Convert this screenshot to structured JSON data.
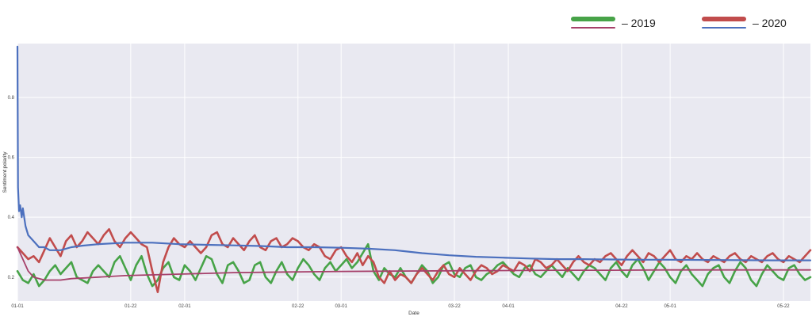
{
  "legend": {
    "items": [
      {
        "label": "– 2019",
        "colors": [
          "#47a348",
          "#a6406a"
        ]
      },
      {
        "label": "– 2020",
        "colors": [
          "#c14c4c",
          "#4c70be"
        ]
      }
    ]
  },
  "chart_data": {
    "type": "line",
    "title": "",
    "xlabel": "Date",
    "ylabel": "Sentiment polarity",
    "x_range_days": [
      0,
      147
    ],
    "ylim": [
      0.12,
      0.98
    ],
    "grid": true,
    "background": "#e9e9f1",
    "x_ticks": [
      {
        "day": 0,
        "label": "01-01"
      },
      {
        "day": 21,
        "label": "01-22"
      },
      {
        "day": 31,
        "label": "02-01"
      },
      {
        "day": 52,
        "label": "02-22"
      },
      {
        "day": 60,
        "label": "03-01"
      },
      {
        "day": 81,
        "label": "03-22"
      },
      {
        "day": 91,
        "label": "04-01"
      },
      {
        "day": 112,
        "label": "04-22"
      },
      {
        "day": 121,
        "label": "05-01"
      },
      {
        "day": 142,
        "label": "05-22"
      }
    ],
    "y_ticks": [
      0.2,
      0.4,
      0.6,
      0.8
    ],
    "series": [
      {
        "name": "2019",
        "color": "#47a348",
        "width": 2.6,
        "x": [
          0,
          1,
          2,
          3,
          4,
          5,
          6,
          7,
          8,
          9,
          10,
          11,
          12,
          13,
          14,
          15,
          16,
          17,
          18,
          19,
          20,
          21,
          22,
          23,
          24,
          25,
          26,
          27,
          28,
          29,
          30,
          31,
          32,
          33,
          34,
          35,
          36,
          37,
          38,
          39,
          40,
          41,
          42,
          43,
          44,
          45,
          46,
          47,
          48,
          49,
          50,
          51,
          52,
          53,
          54,
          55,
          56,
          57,
          58,
          59,
          60,
          61,
          62,
          63,
          64,
          65,
          66,
          67,
          68,
          69,
          70,
          71,
          72,
          73,
          74,
          75,
          76,
          77,
          78,
          79,
          80,
          81,
          82,
          83,
          84,
          85,
          86,
          87,
          88,
          89,
          90,
          91,
          92,
          93,
          94,
          95,
          96,
          97,
          98,
          99,
          100,
          101,
          102,
          103,
          104,
          105,
          106,
          107,
          108,
          109,
          110,
          111,
          112,
          113,
          114,
          115,
          116,
          117,
          118,
          119,
          120,
          121,
          122,
          123,
          124,
          125,
          126,
          127,
          128,
          129,
          130,
          131,
          132,
          133,
          134,
          135,
          136,
          137,
          138,
          139,
          140,
          141,
          142,
          143,
          144,
          145,
          146,
          147
        ],
        "y": [
          0.22,
          0.19,
          0.18,
          0.21,
          0.17,
          0.19,
          0.22,
          0.24,
          0.21,
          0.23,
          0.25,
          0.2,
          0.19,
          0.18,
          0.22,
          0.24,
          0.22,
          0.2,
          0.25,
          0.27,
          0.23,
          0.19,
          0.24,
          0.27,
          0.21,
          0.17,
          0.19,
          0.23,
          0.25,
          0.2,
          0.19,
          0.24,
          0.22,
          0.19,
          0.23,
          0.27,
          0.26,
          0.21,
          0.18,
          0.24,
          0.25,
          0.22,
          0.18,
          0.19,
          0.24,
          0.25,
          0.2,
          0.18,
          0.22,
          0.25,
          0.21,
          0.19,
          0.23,
          0.26,
          0.24,
          0.21,
          0.19,
          0.23,
          0.25,
          0.22,
          0.24,
          0.26,
          0.23,
          0.25,
          0.28,
          0.31,
          0.22,
          0.19,
          0.23,
          0.21,
          0.2,
          0.23,
          0.2,
          0.18,
          0.21,
          0.24,
          0.22,
          0.18,
          0.2,
          0.24,
          0.25,
          0.21,
          0.2,
          0.23,
          0.24,
          0.2,
          0.19,
          0.21,
          0.22,
          0.24,
          0.25,
          0.23,
          0.21,
          0.2,
          0.23,
          0.24,
          0.21,
          0.2,
          0.22,
          0.24,
          0.22,
          0.2,
          0.23,
          0.21,
          0.19,
          0.22,
          0.24,
          0.23,
          0.21,
          0.19,
          0.23,
          0.25,
          0.22,
          0.2,
          0.24,
          0.26,
          0.23,
          0.19,
          0.22,
          0.25,
          0.23,
          0.2,
          0.18,
          0.22,
          0.24,
          0.21,
          0.19,
          0.17,
          0.21,
          0.23,
          0.24,
          0.2,
          0.18,
          0.22,
          0.25,
          0.23,
          0.19,
          0.17,
          0.21,
          0.24,
          0.22,
          0.2,
          0.19,
          0.23,
          0.24,
          0.21,
          0.19,
          0.2
        ]
      },
      {
        "name": "2020",
        "color": "#c14c4c",
        "width": 2.6,
        "x": [
          0,
          1,
          2,
          3,
          4,
          5,
          6,
          7,
          8,
          9,
          10,
          11,
          12,
          13,
          14,
          15,
          16,
          17,
          18,
          19,
          20,
          21,
          22,
          23,
          24,
          25,
          26,
          27,
          28,
          29,
          30,
          31,
          32,
          33,
          34,
          35,
          36,
          37,
          38,
          39,
          40,
          41,
          42,
          43,
          44,
          45,
          46,
          47,
          48,
          49,
          50,
          51,
          52,
          53,
          54,
          55,
          56,
          57,
          58,
          59,
          60,
          61,
          62,
          63,
          64,
          65,
          66,
          67,
          68,
          69,
          70,
          71,
          72,
          73,
          74,
          75,
          76,
          77,
          78,
          79,
          80,
          81,
          82,
          83,
          84,
          85,
          86,
          87,
          88,
          89,
          90,
          91,
          92,
          93,
          94,
          95,
          96,
          97,
          98,
          99,
          100,
          101,
          102,
          103,
          104,
          105,
          106,
          107,
          108,
          109,
          110,
          111,
          112,
          113,
          114,
          115,
          116,
          117,
          118,
          119,
          120,
          121,
          122,
          123,
          124,
          125,
          126,
          127,
          128,
          129,
          130,
          131,
          132,
          133,
          134,
          135,
          136,
          137,
          138,
          139,
          140,
          141,
          142,
          143,
          144,
          145,
          146,
          147
        ],
        "y": [
          0.3,
          0.28,
          0.26,
          0.27,
          0.25,
          0.29,
          0.33,
          0.3,
          0.27,
          0.32,
          0.34,
          0.3,
          0.32,
          0.35,
          0.33,
          0.31,
          0.34,
          0.36,
          0.32,
          0.3,
          0.33,
          0.35,
          0.33,
          0.31,
          0.3,
          0.22,
          0.15,
          0.25,
          0.3,
          0.33,
          0.31,
          0.3,
          0.32,
          0.3,
          0.28,
          0.3,
          0.34,
          0.35,
          0.31,
          0.3,
          0.33,
          0.31,
          0.29,
          0.32,
          0.34,
          0.3,
          0.29,
          0.32,
          0.33,
          0.3,
          0.31,
          0.33,
          0.32,
          0.3,
          0.29,
          0.31,
          0.3,
          0.27,
          0.26,
          0.29,
          0.3,
          0.27,
          0.25,
          0.28,
          0.24,
          0.27,
          0.25,
          0.2,
          0.18,
          0.22,
          0.19,
          0.21,
          0.2,
          0.18,
          0.21,
          0.23,
          0.21,
          0.19,
          0.22,
          0.24,
          0.21,
          0.2,
          0.23,
          0.21,
          0.19,
          0.22,
          0.24,
          0.23,
          0.21,
          0.22,
          0.24,
          0.23,
          0.22,
          0.25,
          0.24,
          0.22,
          0.26,
          0.25,
          0.23,
          0.24,
          0.26,
          0.24,
          0.22,
          0.25,
          0.27,
          0.25,
          0.24,
          0.26,
          0.25,
          0.27,
          0.28,
          0.26,
          0.24,
          0.27,
          0.29,
          0.27,
          0.25,
          0.28,
          0.27,
          0.25,
          0.27,
          0.29,
          0.26,
          0.25,
          0.27,
          0.26,
          0.28,
          0.26,
          0.25,
          0.27,
          0.26,
          0.25,
          0.27,
          0.28,
          0.26,
          0.25,
          0.27,
          0.26,
          0.25,
          0.27,
          0.28,
          0.26,
          0.25,
          0.27,
          0.26,
          0.25,
          0.27,
          0.29
        ]
      },
      {
        "name": "2019",
        "color": "#a6406a",
        "width": 1.8,
        "x": [
          0,
          1,
          2,
          3,
          5,
          8,
          10,
          15,
          20,
          30,
          40,
          50,
          60,
          70,
          80,
          90,
          100,
          110,
          120,
          130,
          147
        ],
        "y": [
          0.3,
          0.26,
          0.22,
          0.2,
          0.19,
          0.19,
          0.195,
          0.2,
          0.205,
          0.21,
          0.215,
          0.217,
          0.219,
          0.22,
          0.221,
          0.222,
          0.223,
          0.223,
          0.224,
          0.224,
          0.224
        ]
      },
      {
        "name": "2020",
        "color": "#4c70be",
        "width": 2.2,
        "x": [
          0,
          0.1,
          0.3,
          0.5,
          0.8,
          1,
          1.5,
          2,
          3,
          4,
          5,
          6,
          8,
          10,
          12,
          15,
          20,
          25,
          30,
          35,
          40,
          45,
          50,
          55,
          60,
          65,
          70,
          75,
          80,
          85,
          90,
          95,
          100,
          105,
          110,
          115,
          120,
          130,
          140,
          147
        ],
        "y": [
          0.97,
          0.5,
          0.42,
          0.44,
          0.4,
          0.43,
          0.37,
          0.34,
          0.32,
          0.3,
          0.3,
          0.29,
          0.29,
          0.3,
          0.305,
          0.31,
          0.315,
          0.315,
          0.31,
          0.308,
          0.306,
          0.304,
          0.3,
          0.3,
          0.298,
          0.295,
          0.29,
          0.28,
          0.273,
          0.268,
          0.265,
          0.262,
          0.26,
          0.26,
          0.259,
          0.258,
          0.258,
          0.257,
          0.256,
          0.256
        ]
      }
    ]
  }
}
